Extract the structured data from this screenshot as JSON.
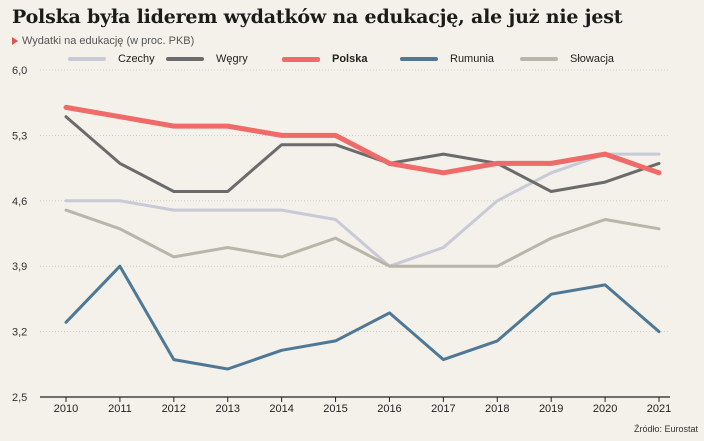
{
  "title": "Polska była liderem wydatków na edukację, ale już nie jest",
  "subtitle": "Wydatki na edukację (w proc. PKB)",
  "source": "Źródło: Eurostat",
  "chart_data": {
    "type": "line",
    "x": [
      2010,
      2011,
      2012,
      2013,
      2014,
      2015,
      2016,
      2017,
      2018,
      2019,
      2020,
      2021
    ],
    "ylim": [
      2.5,
      6.0
    ],
    "yticks": [
      "6,0",
      "5,3",
      "4,6",
      "3,9",
      "3,2",
      "2,5"
    ],
    "ytick_values": [
      6.0,
      5.3,
      4.6,
      3.9,
      3.2,
      2.5
    ],
    "series": [
      {
        "name": "Czechy",
        "color": "#c8cad8",
        "bold": false,
        "values": [
          4.6,
          4.6,
          4.5,
          4.5,
          4.5,
          4.4,
          3.9,
          4.1,
          4.6,
          4.9,
          5.1,
          5.1
        ]
      },
      {
        "name": "Węgry",
        "color": "#6b6b6b",
        "bold": false,
        "values": [
          5.5,
          5.0,
          4.7,
          4.7,
          5.2,
          5.2,
          5.0,
          5.1,
          5.0,
          4.7,
          4.8,
          5.0
        ]
      },
      {
        "name": "Polska",
        "color": "#ef6a68",
        "bold": true,
        "values": [
          5.6,
          5.5,
          5.4,
          5.4,
          5.3,
          5.3,
          5.0,
          4.9,
          5.0,
          5.0,
          5.1,
          4.9
        ]
      },
      {
        "name": "Rumunia",
        "color": "#4f7796",
        "bold": false,
        "values": [
          3.3,
          3.9,
          2.9,
          2.8,
          3.0,
          3.1,
          3.4,
          2.9,
          3.1,
          3.6,
          3.7,
          3.2
        ]
      },
      {
        "name": "Słowacja",
        "color": "#b8b6a8",
        "bold": false,
        "values": [
          4.5,
          4.3,
          4.0,
          4.1,
          4.0,
          4.2,
          3.9,
          3.9,
          3.9,
          4.2,
          4.4,
          4.3
        ]
      }
    ]
  }
}
